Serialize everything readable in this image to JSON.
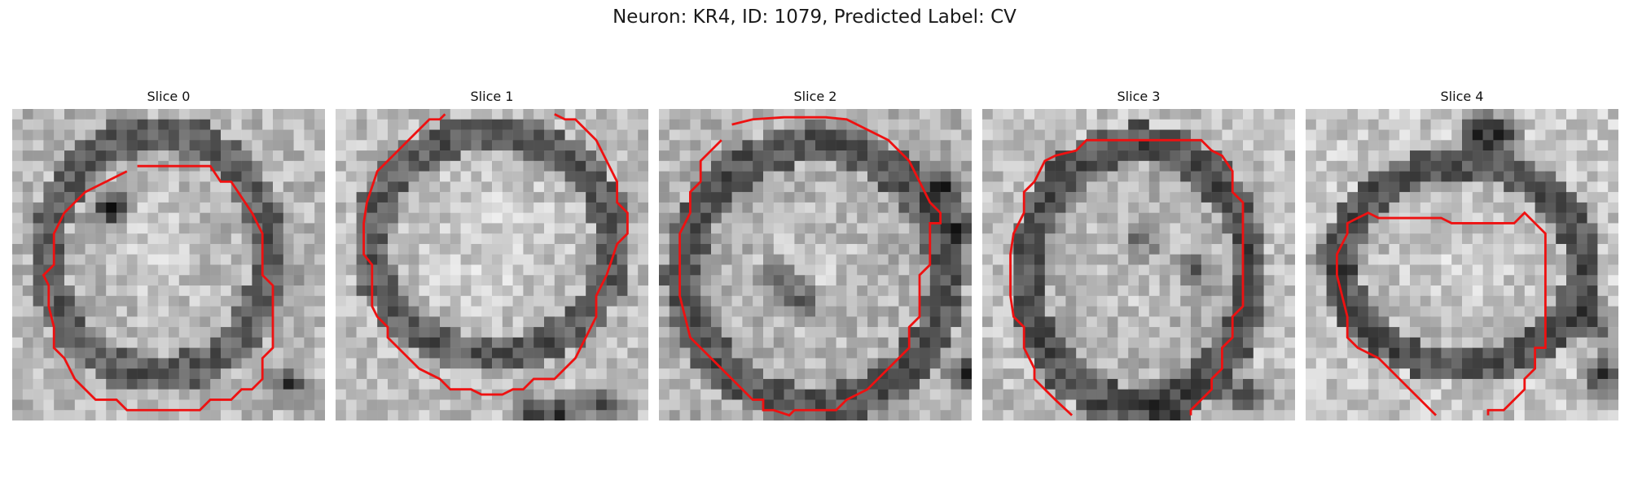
{
  "figure": {
    "title": "Neuron: KR4, ID: 1079, Predicted Label: CV",
    "contour_color": "#ee1111"
  },
  "panels": [
    {
      "title": "Slice 0"
    },
    {
      "title": "Slice 1"
    },
    {
      "title": "Slice 2"
    },
    {
      "title": "Slice 3"
    },
    {
      "title": "Slice 4"
    }
  ]
}
